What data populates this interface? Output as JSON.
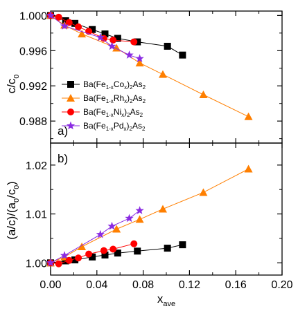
{
  "chart_data": [
    {
      "panel_label": "a)",
      "type": "line",
      "ylabel": "c/c",
      "ylabel_sub": "0",
      "ylim": [
        0.9855,
        1.0005
      ],
      "yticks": [
        1.0,
        0.996,
        0.992,
        0.988
      ],
      "ytick_labels": [
        "1.000",
        "0.996",
        "0.992",
        "0.988"
      ],
      "series": [
        {
          "name": "Ba(Fe1-xCox)2As2",
          "color": "#000000",
          "marker": "square",
          "x": [
            0.0,
            0.013,
            0.021,
            0.036,
            0.047,
            0.058,
            0.075,
            0.101,
            0.114
          ],
          "y": [
            1.0,
            0.9994,
            0.9991,
            0.9984,
            0.9979,
            0.9974,
            0.997,
            0.9965,
            0.9955
          ]
        },
        {
          "name": "Ba(Fe1-xRhx)2As2",
          "color": "#ff7f00",
          "marker": "triangle",
          "x": [
            0.0,
            0.012,
            0.027,
            0.057,
            0.077,
            0.097,
            0.132,
            0.171
          ],
          "y": [
            1.0,
            0.9989,
            0.9979,
            0.9963,
            0.9946,
            0.9933,
            0.991,
            0.9885
          ]
        },
        {
          "name": "Ba(Fe1-xNix)2As2",
          "color": "#ff0000",
          "marker": "circle",
          "x": [
            0.0,
            0.007,
            0.016,
            0.024,
            0.033,
            0.046,
            0.054,
            0.072
          ],
          "y": [
            1.0,
            0.9998,
            0.9992,
            0.9987,
            0.9982,
            0.9974,
            0.9972,
            0.997
          ]
        },
        {
          "name": "Ba(Fe1-xPdx)2As2",
          "color": "#8a2be2",
          "marker": "star",
          "x": [
            0.0,
            0.012,
            0.043,
            0.053,
            0.068,
            0.077
          ],
          "y": [
            1.0,
            0.9988,
            0.9975,
            0.9965,
            0.9955,
            0.9951
          ]
        }
      ]
    },
    {
      "panel_label": "b)",
      "type": "line",
      "ylabel": "(a/c)/(a",
      "ylabel_parts": [
        "(a/c)/(a",
        "0",
        "/c",
        "0",
        ")"
      ],
      "ylim": [
        0.9975,
        1.0245
      ],
      "yticks": [
        1.0,
        1.01,
        1.02
      ],
      "ytick_labels": [
        "1.00",
        "1.01",
        "1.02"
      ],
      "series": [
        {
          "name": "Ba(Fe1-xCox)2As2",
          "color": "#000000",
          "marker": "square",
          "x": [
            0.0,
            0.013,
            0.021,
            0.036,
            0.047,
            0.058,
            0.075,
            0.101,
            0.114
          ],
          "y": [
            1.0,
            1.0004,
            1.0006,
            1.0012,
            1.0016,
            1.002,
            1.0024,
            1.003,
            1.0037
          ]
        },
        {
          "name": "Ba(Fe1-xRhx)2As2",
          "color": "#ff7f00",
          "marker": "triangle",
          "x": [
            0.0,
            0.012,
            0.027,
            0.057,
            0.077,
            0.097,
            0.132,
            0.171
          ],
          "y": [
            1.0,
            1.0012,
            1.0033,
            1.0069,
            1.0089,
            1.011,
            1.0144,
            1.0192
          ]
        },
        {
          "name": "Ba(Fe1-xNix)2As2",
          "color": "#ff0000",
          "marker": "circle",
          "x": [
            0.0,
            0.007,
            0.016,
            0.024,
            0.033,
            0.046,
            0.054,
            0.072
          ],
          "y": [
            1.0,
            0.9998,
            1.0005,
            1.001,
            1.0018,
            1.0025,
            1.0028,
            1.0039
          ]
        },
        {
          "name": "Ba(Fe1-xPdx)2As2",
          "color": "#8a2be2",
          "marker": "star",
          "x": [
            0.0,
            0.012,
            0.043,
            0.053,
            0.068,
            0.077
          ],
          "y": [
            1.0,
            1.0015,
            1.0058,
            1.0075,
            1.0091,
            1.0107
          ]
        }
      ]
    }
  ],
  "x_axis": {
    "label": "x",
    "label_sub": "ave",
    "xlim": [
      0.0,
      0.2
    ],
    "ticks": [
      0.0,
      0.04,
      0.08,
      0.12,
      0.16,
      0.2
    ],
    "tick_labels": [
      "0.00",
      "0.04",
      "0.08",
      "0.12",
      "0.16",
      "0.20"
    ]
  },
  "legend": {
    "placement": "bottom-left of panel a",
    "entries": [
      {
        "series": 0,
        "parts": [
          "Ba(Fe",
          "1-x",
          "Co",
          "x",
          ")",
          "2",
          "As",
          "2"
        ]
      },
      {
        "series": 1,
        "parts": [
          "Ba(Fe",
          "1-x",
          "Rh",
          "x",
          ")",
          "2",
          "As",
          "2"
        ]
      },
      {
        "series": 2,
        "parts": [
          "Ba(Fe",
          "1-x",
          "Ni",
          "x",
          ")",
          "2",
          "As",
          "2"
        ]
      },
      {
        "series": 3,
        "parts": [
          "Ba(Fe",
          "1-x",
          "Pd",
          "x",
          ")",
          "2",
          "As",
          "2"
        ]
      }
    ]
  }
}
